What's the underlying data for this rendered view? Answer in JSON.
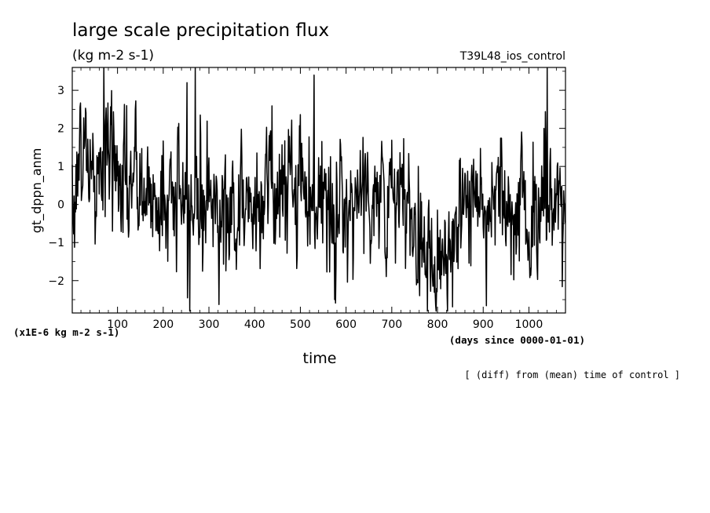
{
  "chart_data": {
    "type": "line",
    "title": "large scale precipitation flux",
    "subtitle": "(kg m-2 s-1)",
    "run_label": "T39L48_ios_control",
    "xlabel": "time",
    "x_unit_note": "(days since 0000-01-01)",
    "ylabel": "gt_dppn_anm",
    "y_unit_note": "(x1E-6 kg m-2 s-1)",
    "footnote": "[ (diff) from (mean) time of control ]",
    "xlim": [
      1,
      1080
    ],
    "ylim": [
      -2.85,
      3.6
    ],
    "x_ticks": [
      100,
      200,
      300,
      400,
      500,
      600,
      700,
      800,
      900,
      1000
    ],
    "x_tick_labels": [
      "100",
      "200",
      "300",
      "400",
      "500",
      "600",
      "700",
      "800",
      "900",
      "1000"
    ],
    "y_ticks": [
      -2,
      -1,
      0,
      1,
      2,
      3
    ],
    "y_tick_labels": [
      "−2",
      "−1",
      "0",
      "1",
      "2",
      "3"
    ],
    "grid": false,
    "line_color": "#000000",
    "anchors": {
      "x": [
        1,
        15,
        30,
        45,
        65,
        72,
        90,
        120,
        160,
        200,
        240,
        257,
        262,
        300,
        350,
        400,
        450,
        500,
        550,
        570,
        600,
        650,
        700,
        750,
        780,
        800,
        850,
        900,
        950,
        1000,
        1020,
        1040,
        1060,
        1080
      ],
      "y": [
        0.3,
        1.0,
        1.6,
        0.5,
        0.8,
        1.5,
        1.0,
        0.6,
        0.3,
        0.1,
        0.2,
        -0.6,
        0.5,
        0.1,
        -0.2,
        0.2,
        0.5,
        0.6,
        0.2,
        -0.6,
        0.2,
        0.4,
        0.0,
        -0.4,
        -1.0,
        -1.2,
        -0.6,
        0.2,
        0.4,
        -0.5,
        -0.3,
        0.2,
        -0.3,
        0.0
      ]
    },
    "peaks": {
      "x": [
        70,
        252,
        258,
        270,
        530,
        575,
        778,
        1040
      ],
      "y": [
        3.6,
        3.2,
        -2.8,
        3.6,
        3.4,
        -2.5,
        -2.8,
        3.6
      ]
    }
  }
}
